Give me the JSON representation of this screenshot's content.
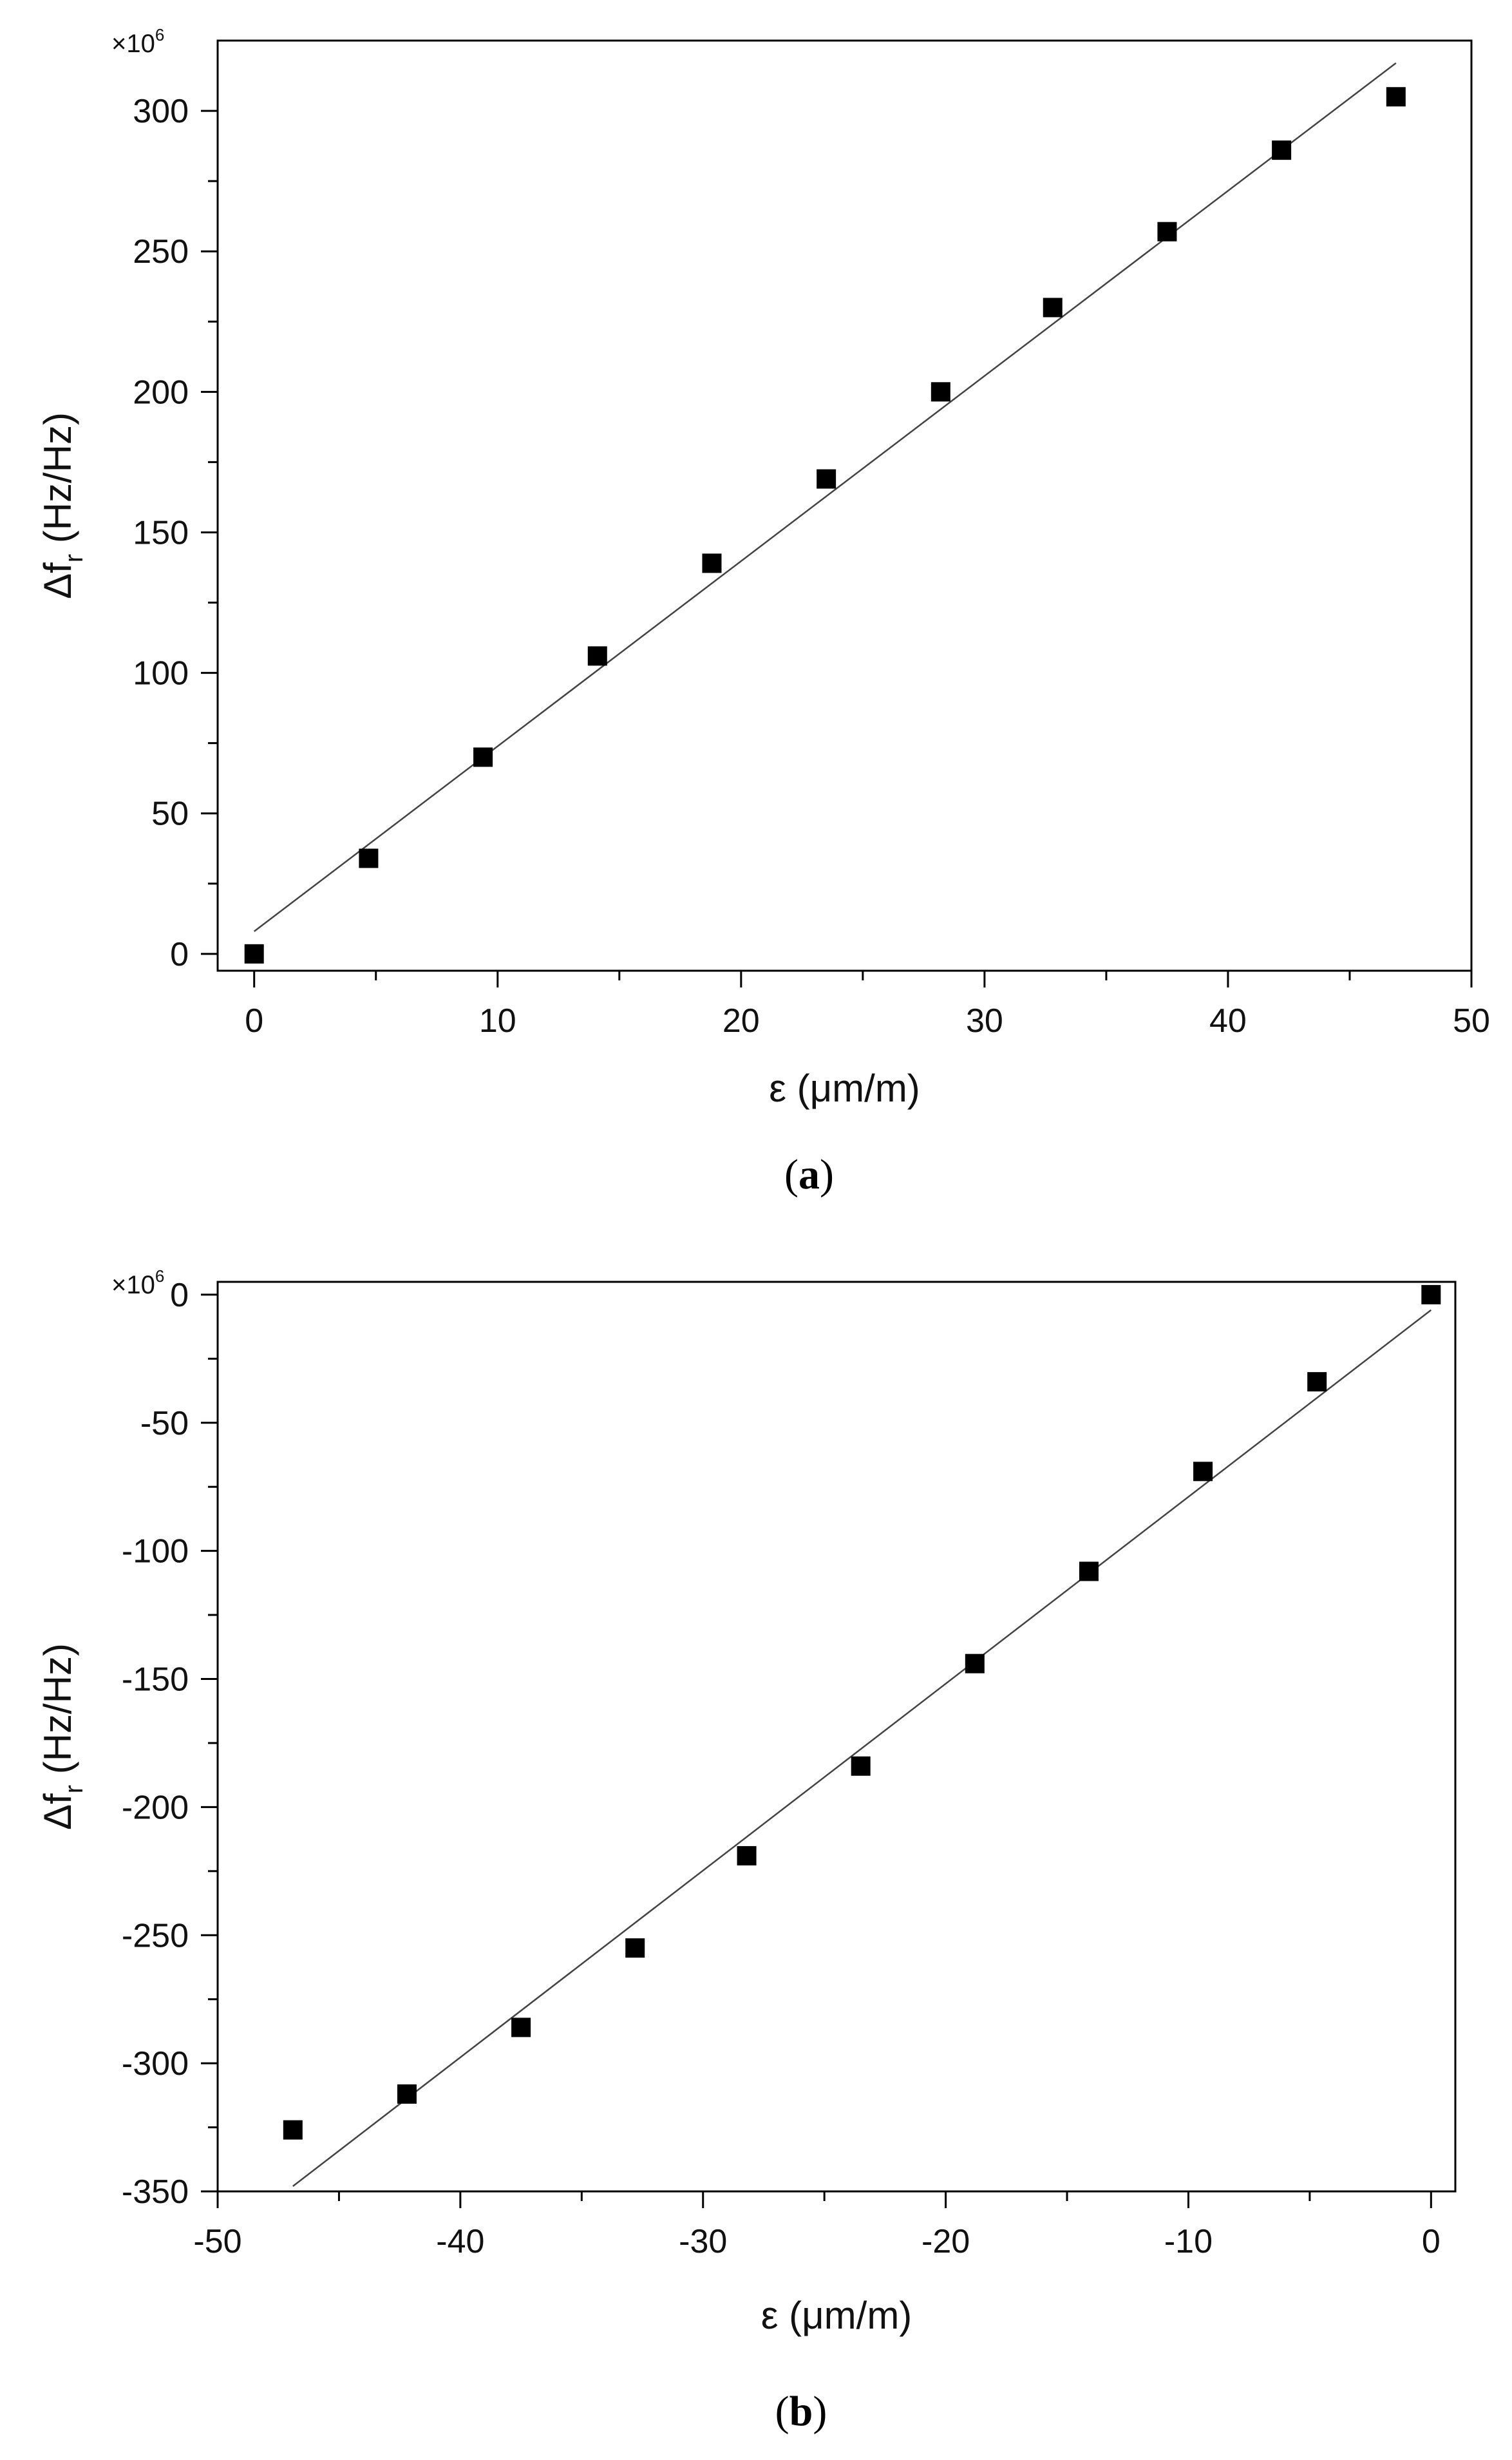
{
  "chart_data": [
    {
      "type": "scatter",
      "panel_label": "a",
      "xlabel": "ε (μm/m)",
      "ylabel": "Δf",
      "ylabel_subscript": "r",
      "ylabel_unit": "(Hz/Hz)",
      "y_multiplier": "×10",
      "y_multiplier_exp": "6",
      "xlim": [
        -1.5,
        50
      ],
      "ylim": [
        -6,
        325
      ],
      "x_ticks": [
        0,
        10,
        20,
        30,
        40,
        50
      ],
      "x_tick_labels": [
        "0",
        "10",
        "20",
        "30",
        "40",
        "50"
      ],
      "y_ticks": [
        0,
        50,
        100,
        150,
        200,
        250,
        300
      ],
      "y_tick_labels": [
        "0",
        "50",
        "100",
        "150",
        "200",
        "250",
        "300"
      ],
      "grid": false,
      "legend": "none",
      "series": [
        {
          "marker": "square",
          "x": [
            0,
            4.7,
            9.4,
            14.1,
            18.8,
            23.5,
            28.2,
            32.8,
            37.5,
            42.2,
            46.9
          ],
          "y": [
            0,
            34,
            70,
            106,
            139,
            169,
            200,
            230,
            257,
            286,
            305
          ]
        }
      ],
      "fit_line": {
        "x": [
          0,
          46.9
        ],
        "y": [
          8,
          317
        ]
      }
    },
    {
      "type": "scatter",
      "panel_label": "b",
      "xlabel": "ε (μm/m)",
      "ylabel": "Δf",
      "ylabel_subscript": "r",
      "ylabel_unit": "(Hz/Hz)",
      "y_multiplier": "×10",
      "y_multiplier_exp": "6",
      "xlim": [
        -50,
        1
      ],
      "ylim": [
        -350,
        5
      ],
      "x_ticks": [
        -50,
        -40,
        -30,
        -20,
        -10,
        0
      ],
      "x_tick_labels": [
        "-50",
        "-40",
        "-30",
        "-20",
        "-10",
        "0"
      ],
      "y_ticks": [
        0,
        -50,
        -100,
        -150,
        -200,
        -250,
        -300,
        -350
      ],
      "y_tick_labels": [
        "0",
        "-50",
        "-100",
        "-150",
        "-200",
        "-250",
        "-300",
        "-350"
      ],
      "grid": false,
      "legend": "none",
      "series": [
        {
          "marker": "square",
          "x": [
            -46.9,
            -42.2,
            -37.5,
            -32.8,
            -28.2,
            -23.5,
            -18.8,
            -14.1,
            -9.4,
            -4.7,
            0
          ],
          "y": [
            -326,
            -312,
            -286,
            -255,
            -219,
            -184,
            -144,
            -108,
            -69,
            -34,
            0
          ]
        }
      ],
      "fit_line": {
        "x": [
          -46.9,
          0
        ],
        "y": [
          -348,
          -6
        ]
      }
    }
  ]
}
